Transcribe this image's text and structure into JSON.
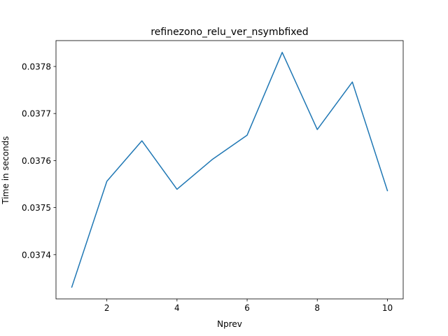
{
  "chart_data": {
    "type": "line",
    "title": "refinezono_relu_ver_nsymbfixed",
    "xlabel": "Nprev",
    "ylabel": "Time in seconds",
    "x": [
      1,
      2,
      3,
      4,
      5,
      6,
      7,
      8,
      9,
      10
    ],
    "series": [
      {
        "values": [
          0.037331,
          0.037556,
          0.037642,
          0.037539,
          0.037602,
          0.037654,
          0.03783,
          0.037666,
          0.037767,
          0.037536
        ],
        "color": "#1f77b4"
      }
    ],
    "xlim": [
      0.55,
      10.45
    ],
    "ylim": [
      0.037306,
      0.037855
    ],
    "xticks": [
      2,
      4,
      6,
      8,
      10
    ],
    "xtick_labels": [
      "2",
      "4",
      "6",
      "8",
      "10"
    ],
    "yticks": [
      0.0374,
      0.0375,
      0.0376,
      0.0377,
      0.0378
    ],
    "ytick_labels": [
      "0.0374",
      "0.0375",
      "0.0376",
      "0.0377",
      "0.0378"
    ],
    "grid": false,
    "legend": null
  }
}
